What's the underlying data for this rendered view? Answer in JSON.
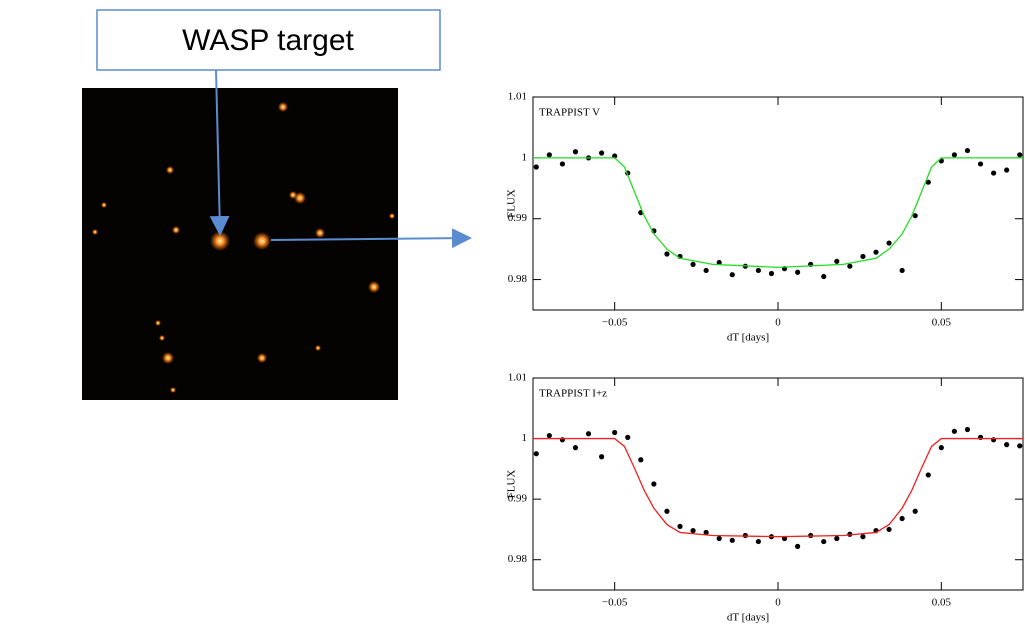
{
  "callout": {
    "label": "WASP target"
  },
  "chart_data": [
    {
      "type": "scatter",
      "annotation": "TRAPPIST V",
      "xlabel": "dT [days]",
      "ylabel": "FLUX",
      "xlim": [
        -0.075,
        0.075
      ],
      "ylim": [
        0.975,
        1.01
      ],
      "xticks": [
        {
          "value": -0.05,
          "label": "−0.05"
        },
        0,
        0.05
      ],
      "yticks": [
        0.98,
        0.99,
        1,
        1.01
      ],
      "series": [
        {
          "mode": "markers",
          "color": "#000000",
          "x": [
            -0.074,
            -0.07,
            -0.066,
            -0.062,
            -0.058,
            -0.054,
            -0.05,
            -0.046,
            -0.042,
            -0.038,
            -0.034,
            -0.03,
            -0.026,
            -0.022,
            -0.018,
            -0.014,
            -0.01,
            -0.006,
            -0.002,
            0.002,
            0.006,
            0.01,
            0.014,
            0.018,
            0.022,
            0.026,
            0.03,
            0.034,
            0.038,
            0.042,
            0.046,
            0.05,
            0.054,
            0.058,
            0.062,
            0.066,
            0.07,
            0.074
          ],
          "values": [
            0.9985,
            1.0005,
            0.999,
            1.001,
            1.0,
            1.0008,
            1.0003,
            0.9975,
            0.991,
            0.988,
            0.9842,
            0.9838,
            0.9825,
            0.9815,
            0.9828,
            0.9808,
            0.9822,
            0.9815,
            0.981,
            0.9818,
            0.9812,
            0.9825,
            0.9805,
            0.983,
            0.9822,
            0.9838,
            0.9845,
            0.986,
            0.9815,
            0.9905,
            0.996,
            0.9995,
            1.0005,
            1.0012,
            0.999,
            0.9975,
            0.998,
            1.0005
          ]
        },
        {
          "mode": "line",
          "color": "#22dd22",
          "x": [
            -0.075,
            -0.05,
            -0.047,
            -0.044,
            -0.041,
            -0.038,
            -0.034,
            -0.03,
            -0.02,
            0,
            0.02,
            0.03,
            0.034,
            0.038,
            0.041,
            0.044,
            0.047,
            0.05,
            0.075
          ],
          "values": [
            1,
            1,
            0.9985,
            0.9945,
            0.9905,
            0.9875,
            0.985,
            0.9835,
            0.9825,
            0.982,
            0.9825,
            0.9835,
            0.985,
            0.9875,
            0.9905,
            0.9945,
            0.9985,
            1,
            1
          ]
        }
      ]
    },
    {
      "type": "scatter",
      "annotation": "TRAPPIST I+z",
      "xlabel": "dT [days]",
      "ylabel": "FLUX",
      "xlim": [
        -0.075,
        0.075
      ],
      "ylim": [
        0.975,
        1.01
      ],
      "xticks": [
        {
          "value": -0.05,
          "label": "−0.05"
        },
        0,
        0.05
      ],
      "yticks": [
        0.98,
        0.99,
        1,
        1.01
      ],
      "series": [
        {
          "mode": "markers",
          "color": "#000000",
          "x": [
            -0.074,
            -0.07,
            -0.066,
            -0.062,
            -0.058,
            -0.054,
            -0.05,
            -0.046,
            -0.042,
            -0.038,
            -0.034,
            -0.03,
            -0.026,
            -0.022,
            -0.018,
            -0.014,
            -0.01,
            -0.006,
            -0.002,
            0.002,
            0.006,
            0.01,
            0.014,
            0.018,
            0.022,
            0.026,
            0.03,
            0.034,
            0.038,
            0.042,
            0.046,
            0.05,
            0.054,
            0.058,
            0.062,
            0.066,
            0.07,
            0.074
          ],
          "values": [
            0.9975,
            1.0005,
            0.9998,
            0.9985,
            1.0008,
            0.997,
            1.001,
            1.0002,
            0.9965,
            0.9925,
            0.988,
            0.9855,
            0.9848,
            0.9845,
            0.9835,
            0.9832,
            0.984,
            0.983,
            0.9838,
            0.9835,
            0.9822,
            0.984,
            0.983,
            0.9835,
            0.9842,
            0.9838,
            0.9848,
            0.985,
            0.9868,
            0.988,
            0.994,
            0.9985,
            1.0012,
            1.0015,
            1.0002,
            0.9998,
            0.999,
            0.9988
          ]
        },
        {
          "mode": "line",
          "color": "#ee2222",
          "x": [
            -0.075,
            -0.05,
            -0.047,
            -0.044,
            -0.041,
            -0.038,
            -0.034,
            -0.03,
            -0.02,
            0,
            0.02,
            0.03,
            0.034,
            0.038,
            0.041,
            0.044,
            0.047,
            0.05,
            0.075
          ],
          "values": [
            1,
            1,
            0.9987,
            0.9952,
            0.9915,
            0.9885,
            0.9858,
            0.9845,
            0.984,
            0.9838,
            0.984,
            0.9845,
            0.9858,
            0.9885,
            0.9915,
            0.9952,
            0.9987,
            1,
            1
          ]
        }
      ]
    }
  ]
}
